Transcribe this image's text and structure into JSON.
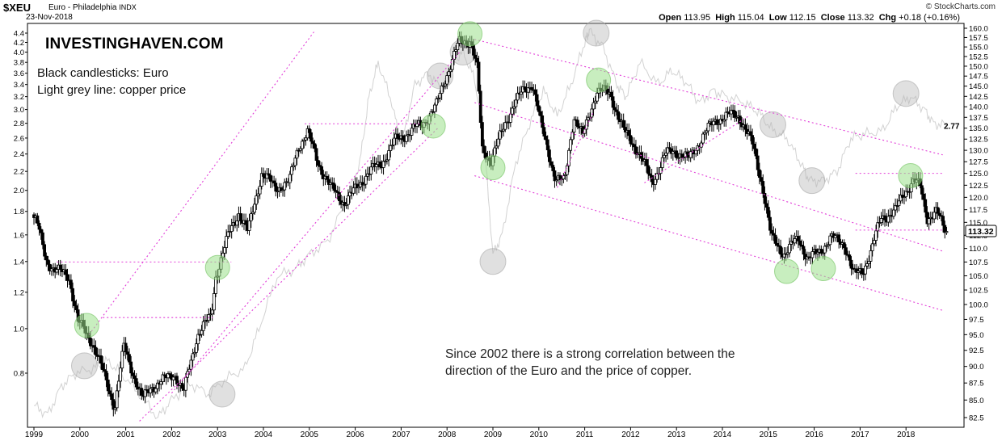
{
  "header": {
    "symbol": "$XEU",
    "description": "Euro - Philadelphia",
    "exchange": "INDX",
    "date": "23-Nov-2018",
    "credit": "© StockCharts.com",
    "open_label": "Open",
    "open": "113.95",
    "high_label": "High",
    "high": "115.04",
    "low_label": "Low",
    "low": "112.15",
    "close_label": "Close",
    "close": "113.32",
    "chg_label": "Chg",
    "chg": "+0.18 (+0.16%)"
  },
  "brand": "INVESTINGHAVEN.COM",
  "legend_notes": [
    "Black candlesticks: Euro",
    "Light grey line: copper price"
  ],
  "annotation": [
    "Since 2002 there is a strong correlation between the",
    "direction of the Euro and the price of copper."
  ],
  "colors": {
    "candle": "#000000",
    "copper_line": "#d2d2d2",
    "trend_line": "#e23ed8",
    "green_circle": "#9be08a",
    "grey_circle": "#b4b4b4",
    "axis": "#000000"
  },
  "chart_data": {
    "type": "candlestick",
    "x_axis": {
      "labels": [
        "1999",
        "2000",
        "2001",
        "2002",
        "2003",
        "2004",
        "2005",
        "2006",
        "2007",
        "2008",
        "2009",
        "2010",
        "2011",
        "2012",
        "2013",
        "2014",
        "2015",
        "2016",
        "2017",
        "2018"
      ]
    },
    "right_axis": {
      "series": "Euro index ($XEU)",
      "ticks": [
        "82.5",
        "85.0",
        "87.5",
        "90.0",
        "92.5",
        "95.0",
        "97.5",
        "100.0",
        "102.5",
        "105.0",
        "107.5",
        "110.0",
        "112.5",
        "115.0",
        "117.5",
        "120.0",
        "122.5",
        "125.0",
        "127.5",
        "130.0",
        "132.5",
        "135.0",
        "137.5",
        "140.0",
        "142.5",
        "145.0",
        "147.5",
        "150.0",
        "152.5",
        "155.0",
        "157.5",
        "160.0"
      ],
      "ylim": [
        80.5,
        161
      ],
      "scale": "log",
      "last_value": "113.32"
    },
    "left_axis": {
      "series": "copper price",
      "ticks": [
        "0.8",
        "1.0",
        "1.2",
        "1.4",
        "1.6",
        "1.8",
        "2.0",
        "2.2",
        "2.4",
        "2.6",
        "2.8",
        "3.0",
        "3.2",
        "3.4",
        "3.6",
        "3.8",
        "4.0",
        "4.2",
        "4.4"
      ],
      "scale": "log",
      "last_value": "2.77"
    },
    "euro_path": [
      [
        "1999.0",
        116.5
      ],
      [
        "1999.1",
        115
      ],
      [
        "1999.3",
        108
      ],
      [
        "1999.5",
        106
      ],
      [
        "1999.8",
        105
      ],
      [
        "2000.0",
        97
      ],
      [
        "2000.3",
        94
      ],
      [
        "2000.6",
        88
      ],
      [
        "2000.8",
        84
      ],
      [
        "2001.0",
        93
      ],
      [
        "2001.2",
        89
      ],
      [
        "2001.4",
        85
      ],
      [
        "2001.6",
        87
      ],
      [
        "2001.9",
        88
      ],
      [
        "2002.1",
        89
      ],
      [
        "2002.3",
        86
      ],
      [
        "2002.6",
        95
      ],
      [
        "2002.9",
        98
      ],
      [
        "2003.0",
        105
      ],
      [
        "2003.3",
        113
      ],
      [
        "2003.5",
        117
      ],
      [
        "2003.7",
        113
      ],
      [
        "2004.0",
        125
      ],
      [
        "2004.3",
        122
      ],
      [
        "2004.6",
        123
      ],
      [
        "2004.8",
        131
      ],
      [
        "2005.0",
        134
      ],
      [
        "2005.2",
        128
      ],
      [
        "2005.5",
        122
      ],
      [
        "2005.8",
        119
      ],
      [
        "2006.0",
        121
      ],
      [
        "2006.3",
        125
      ],
      [
        "2006.6",
        127
      ],
      [
        "2006.9",
        132
      ],
      [
        "2007.2",
        134
      ],
      [
        "2007.5",
        136
      ],
      [
        "2007.8",
        140
      ],
      [
        "2008.0",
        147
      ],
      [
        "2008.3",
        156
      ],
      [
        "2008.55",
        157
      ],
      [
        "2008.7",
        149
      ],
      [
        "2008.8",
        130
      ],
      [
        "2009.0",
        128
      ],
      [
        "2009.2",
        133
      ],
      [
        "2009.5",
        141
      ],
      [
        "2009.9",
        146
      ],
      [
        "2010.1",
        135
      ],
      [
        "2010.4",
        124
      ],
      [
        "2010.6",
        123
      ],
      [
        "2010.8",
        138
      ],
      [
        "2011.0",
        133
      ],
      [
        "2011.3",
        144
      ],
      [
        "2011.6",
        143
      ],
      [
        "2011.9",
        134
      ],
      [
        "2012.2",
        130
      ],
      [
        "2012.5",
        123
      ],
      [
        "2012.8",
        129
      ],
      [
        "2013.0",
        130
      ],
      [
        "2013.3",
        128
      ],
      [
        "2013.6",
        133
      ],
      [
        "2013.9",
        137
      ],
      [
        "2014.2",
        138
      ],
      [
        "2014.4",
        138
      ],
      [
        "2014.7",
        131
      ],
      [
        "2014.9",
        123
      ],
      [
        "2015.1",
        112
      ],
      [
        "2015.4",
        109
      ],
      [
        "2015.7",
        112
      ],
      [
        "2015.9",
        108
      ],
      [
        "2016.1",
        109
      ],
      [
        "2016.4",
        112
      ],
      [
        "2016.7",
        111
      ],
      [
        "2016.9",
        105
      ],
      [
        "2017.1",
        106
      ],
      [
        "2017.3",
        110
      ],
      [
        "2017.5",
        116
      ],
      [
        "2017.8",
        117
      ],
      [
        "2018.0",
        121
      ],
      [
        "2018.2",
        123.5
      ],
      [
        "2018.35",
        122
      ],
      [
        "2018.5",
        116
      ],
      [
        "2018.7",
        117
      ],
      [
        "2018.9",
        113.3
      ]
    ],
    "copper_path": [
      [
        "1999.0",
        0.68
      ],
      [
        "1999.3",
        0.65
      ],
      [
        "1999.6",
        0.75
      ],
      [
        "1999.9",
        0.8
      ],
      [
        "2000.3",
        0.82
      ],
      [
        "2000.6",
        0.85
      ],
      [
        "2000.9",
        0.8
      ],
      [
        "2001.3",
        0.72
      ],
      [
        "2001.7",
        0.64
      ],
      [
        "2002.0",
        0.7
      ],
      [
        "2002.4",
        0.76
      ],
      [
        "2002.8",
        0.72
      ],
      [
        "2003.2",
        0.78
      ],
      [
        "2003.6",
        0.82
      ],
      [
        "2003.9",
        1.0
      ],
      [
        "2004.3",
        1.3
      ],
      [
        "2004.7",
        1.35
      ],
      [
        "2005.0",
        1.45
      ],
      [
        "2005.4",
        1.55
      ],
      [
        "2005.8",
        1.9
      ],
      [
        "2006.1",
        2.3
      ],
      [
        "2006.3",
        3.2
      ],
      [
        "2006.5",
        3.8
      ],
      [
        "2006.8",
        3.1
      ],
      [
        "2007.0",
        2.5
      ],
      [
        "2007.3",
        3.4
      ],
      [
        "2007.6",
        3.6
      ],
      [
        "2007.9",
        3.3
      ],
      [
        "2008.1",
        3.8
      ],
      [
        "2008.35",
        4.0
      ],
      [
        "2008.6",
        3.5
      ],
      [
        "2008.8",
        2.6
      ],
      [
        "2009.0",
        1.45
      ],
      [
        "2009.2",
        1.6
      ],
      [
        "2009.5",
        2.3
      ],
      [
        "2009.8",
        2.8
      ],
      [
        "2010.1",
        3.3
      ],
      [
        "2010.4",
        2.9
      ],
      [
        "2010.7",
        3.4
      ],
      [
        "2011.0",
        4.2
      ],
      [
        "2011.1",
        4.45
      ],
      [
        "2011.4",
        4.1
      ],
      [
        "2011.7",
        3.4
      ],
      [
        "2011.9",
        3.2
      ],
      [
        "2012.2",
        3.8
      ],
      [
        "2012.6",
        3.4
      ],
      [
        "2012.9",
        3.65
      ],
      [
        "2013.2",
        3.45
      ],
      [
        "2013.5",
        3.1
      ],
      [
        "2013.8",
        3.3
      ],
      [
        "2014.1",
        3.2
      ],
      [
        "2014.5",
        3.1
      ],
      [
        "2014.8",
        2.95
      ],
      [
        "2015.1",
        2.7
      ],
      [
        "2015.4",
        2.6
      ],
      [
        "2015.7",
        2.3
      ],
      [
        "2015.9",
        2.1
      ],
      [
        "2016.2",
        2.1
      ],
      [
        "2016.5",
        2.2
      ],
      [
        "2016.8",
        2.6
      ],
      [
        "2017.1",
        2.65
      ],
      [
        "2017.5",
        2.7
      ],
      [
        "2017.8",
        3.05
      ],
      [
        "2018.1",
        3.2
      ],
      [
        "2018.4",
        3.0
      ],
      [
        "2018.6",
        2.8
      ],
      [
        "2018.9",
        2.77
      ]
    ],
    "green_circles": [
      [
        "2000.15",
        96.5
      ],
      [
        "2003.0",
        106.5
      ],
      [
        "2007.7",
        135.5
      ],
      [
        "2008.5",
        158.5
      ],
      [
        "2009.0",
        126.2
      ],
      [
        "2011.3",
        146.5
      ],
      [
        "2015.4",
        105.8
      ],
      [
        "2016.2",
        106.3
      ],
      [
        "2018.1",
        124.5
      ]
    ],
    "grey_circles": [
      [
        "2000.1",
        0.83
      ],
      [
        "2003.1",
        0.72
      ],
      [
        "2007.85",
        3.55
      ],
      [
        "2008.35",
        4.0
      ],
      [
        "2009.0",
        1.4
      ],
      [
        "2011.25",
        4.4
      ],
      [
        "2015.1",
        2.78
      ],
      [
        "2015.95",
        2.1
      ],
      [
        "2018.0",
        3.25
      ]
    ],
    "trend_lines": [
      [
        [
          "2000.2",
          95
        ],
        [
          "2005.1",
          159
        ]
      ],
      [
        [
          "2002.0",
          86
        ],
        [
          "2008.3",
          154
        ]
      ],
      [
        [
          "2001.3",
          82
        ],
        [
          "2007.8",
          135
        ]
      ],
      [
        [
          "1999.5",
          107.5
        ],
        [
          "2003.3",
          107.5
        ]
      ],
      [
        [
          "2000.5",
          97.8
        ],
        [
          "2002.9",
          97.8
        ]
      ],
      [
        [
          "2004.9",
          136
        ],
        [
          "2007.8",
          136
        ]
      ],
      [
        [
          "2008.6",
          157
        ],
        [
          "2018.8",
          129
        ]
      ],
      [
        [
          "2008.6",
          141
        ],
        [
          "2018.8",
          109.5
        ]
      ],
      [
        [
          "2008.6",
          124.5
        ],
        [
          "2018.8",
          99
        ]
      ],
      [
        [
          "2010.4",
          122
        ],
        [
          "2011.2",
          139
        ]
      ],
      [
        [
          "2012.3",
          123
        ],
        [
          "2014.6",
          138
        ]
      ],
      [
        [
          "2016.9",
          125
        ],
        [
          "2018.8",
          125
        ]
      ],
      [
        [
          "2016.9",
          113.5
        ],
        [
          "2018.8",
          113.5
        ]
      ]
    ]
  }
}
